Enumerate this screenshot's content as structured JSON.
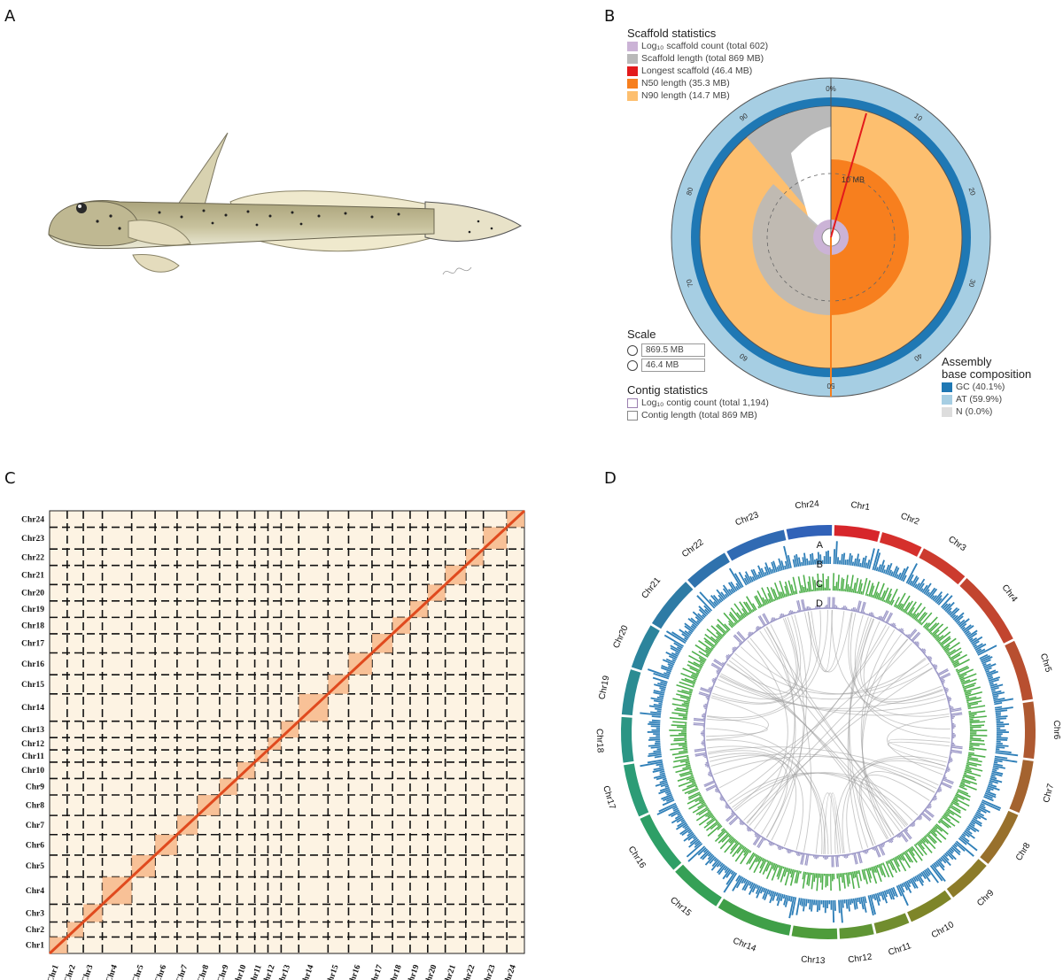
{
  "panels": {
    "a": "A",
    "b": "B",
    "c": "C",
    "d": "D"
  },
  "panel_b": {
    "scaffold_title": "Scaffold statistics",
    "scaffold_items": [
      {
        "label": "Log₁₀ scaffold count (total 602)",
        "color": "#cbb3d6"
      },
      {
        "label": "Scaffold length (total 869 MB)",
        "color": "#b9b9b9"
      },
      {
        "label": "Longest scaffold (46.4 MB)",
        "color": "#e31a1c"
      },
      {
        "label": "N50 length (35.3 MB)",
        "color": "#f77f1e"
      },
      {
        "label": "N90 length (14.7 MB)",
        "color": "#fdbf6f"
      }
    ],
    "scale_title": "Scale",
    "scale_values": [
      "869.5 MB",
      "46.4 MB"
    ],
    "contig_title": "Contig statistics",
    "contig_items": [
      "Log₁₀ contig count (total 1,194)",
      "Contig length (total 869 MB)"
    ],
    "comp_title_1": "Assembly",
    "comp_title_2": "base composition",
    "comp_items": [
      {
        "label": "GC (40.1%)",
        "color": "#1f78b4"
      },
      {
        "label": "AT (59.9%)",
        "color": "#a6cee3"
      },
      {
        "label": "N (0.0%)",
        "color": "#dddddd"
      }
    ],
    "ring_ticks": [
      "0%",
      "10",
      "20",
      "30",
      "40",
      "50",
      "60",
      "70",
      "80",
      "90"
    ],
    "inner_scale_label": "10 MB"
  },
  "panel_c": {
    "chromosomes": [
      "Chr1",
      "Chr2",
      "Chr3",
      "Chr4",
      "Chr5",
      "Chr6",
      "Chr7",
      "Chr8",
      "Chr9",
      "Chr10",
      "Chr11",
      "Chr12",
      "Chr13",
      "Chr14",
      "Chr15",
      "Chr16",
      "Chr17",
      "Chr18",
      "Chr19",
      "Chr20",
      "Chr21",
      "Chr22",
      "Chr23",
      "Chr24"
    ],
    "relative_sizes": [
      1.2,
      1.1,
      1.3,
      2.0,
      1.6,
      1.5,
      1.4,
      1.5,
      1.2,
      1.2,
      0.9,
      0.9,
      1.2,
      2.0,
      1.4,
      1.6,
      1.4,
      1.2,
      1.2,
      1.2,
      1.4,
      1.2,
      1.6,
      1.2
    ]
  },
  "panel_d": {
    "track_labels": [
      "A",
      "B",
      "C",
      "D"
    ],
    "chromosomes": [
      "Chr1",
      "Chr2",
      "Chr3",
      "Chr4",
      "Chr5",
      "Chr6",
      "Chr7",
      "Chr8",
      "Chr9",
      "Chr10",
      "Chr11",
      "Chr12",
      "Chr13",
      "Chr14",
      "Chr15",
      "Chr16",
      "Chr17",
      "Chr18",
      "Chr19",
      "Chr20",
      "Chr21",
      "Chr22",
      "Chr23",
      "Chr24"
    ],
    "chr_colors": [
      "#d7262b",
      "#d5302c",
      "#cc3b2e",
      "#c2452f",
      "#b84f30",
      "#ae5931",
      "#a4632f",
      "#98702c",
      "#8c7b29",
      "#7e8528",
      "#718d2e",
      "#5f9534",
      "#4e9c3b",
      "#3f9f48",
      "#35a056",
      "#2e9f66",
      "#2c9c76",
      "#2b9584",
      "#2b8c92",
      "#2c849c",
      "#2e7ba5",
      "#2f72ad",
      "#306ab3",
      "#3162b8"
    ]
  }
}
